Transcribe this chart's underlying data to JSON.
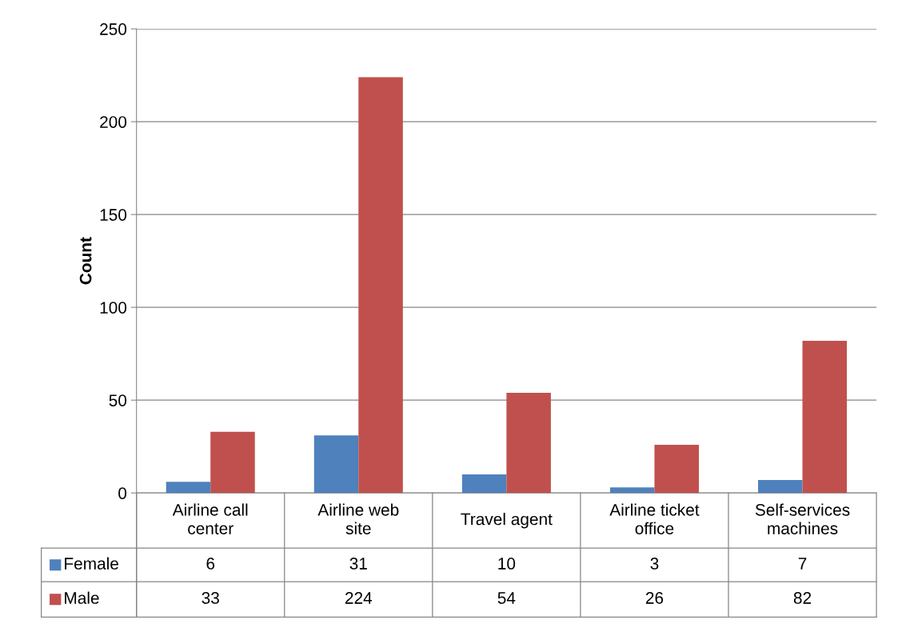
{
  "chart_data": {
    "type": "bar",
    "ylabel": "Count",
    "categories": [
      "Airline call\ncenter",
      "Airline web\nsite",
      "Travel agent",
      "Airline ticket\noffice",
      "Self-services\nmachines"
    ],
    "series": [
      {
        "name": "Female",
        "color": "#4f81bd",
        "values": [
          6,
          31,
          10,
          3,
          7
        ]
      },
      {
        "name": "Male",
        "color": "#c0504d",
        "values": [
          33,
          224,
          54,
          26,
          82
        ]
      }
    ],
    "ylim": [
      0,
      250
    ],
    "yticks": [
      0,
      50,
      100,
      150,
      200,
      250
    ],
    "grid": "y",
    "data_labels": true,
    "legend": "bottom left"
  }
}
